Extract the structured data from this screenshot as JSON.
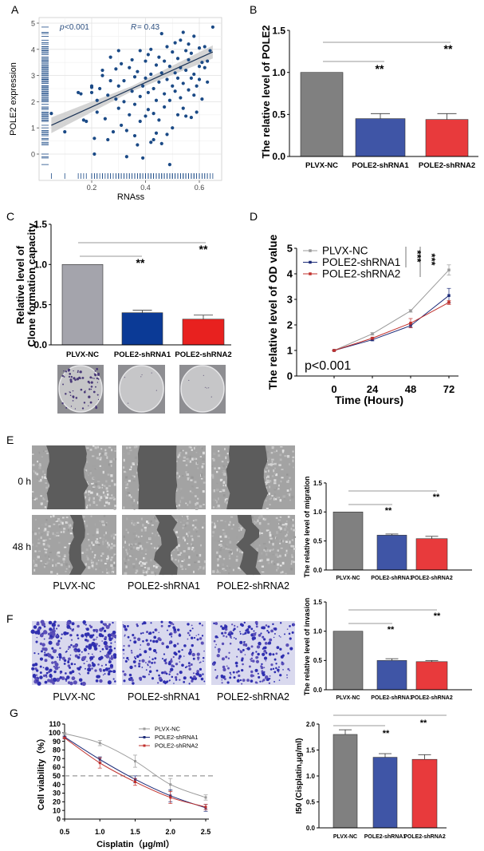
{
  "panel_labels": [
    "A",
    "B",
    "C",
    "D",
    "E",
    "F",
    "G"
  ],
  "groups": [
    "PLVX-NC",
    "POLE2-shRNA1",
    "POLE2-shRNA2"
  ],
  "colors": {
    "nc": "#808080",
    "sh1": "#3f55a6",
    "sh1_dark": "#0b3a96",
    "sh2": "#e83a3c",
    "scatter": "#1b4a86",
    "line_nc": "#9a9a9a",
    "line_sh1": "#1c2b78",
    "line_sh2": "#c0302c"
  },
  "wound_images": {
    "time_labels": [
      "0 h",
      "48 h"
    ],
    "captions": [
      "PLVX-NC",
      "POLE2-shRNA1",
      "POLE2-shRNA2"
    ]
  },
  "invasion_images": {
    "captions": [
      "PLVX-NC",
      "POLE2-shRNA1",
      "POLE2-shRNA2"
    ]
  },
  "chart_data": [
    {
      "panel": "A",
      "type": "scatter",
      "xlabel": "RNAss",
      "ylabel": "POLE2 expression",
      "xticks": [
        "0.2",
        "0.4",
        "0.6"
      ],
      "yticks": [
        "0",
        "1",
        "2",
        "3",
        "4",
        "5"
      ],
      "annotations": {
        "p_prefix": "p",
        "p_text": "<0.001",
        "r_prefix": "R",
        "r_text": "= 0.43"
      },
      "regression": {
        "x": [
          0.05,
          0.65
        ],
        "y": [
          1.1,
          3.9
        ]
      },
      "grid": true,
      "rug": true,
      "points": [
        [
          0.05,
          1.55
        ],
        [
          0.1,
          0.85
        ],
        [
          0.15,
          2.35
        ],
        [
          0.16,
          2.3
        ],
        [
          0.17,
          1.3
        ],
        [
          0.18,
          1.25
        ],
        [
          0.2,
          2.55
        ],
        [
          0.2,
          2.35
        ],
        [
          0.2,
          2.6
        ],
        [
          0.21,
          0.6
        ],
        [
          0.21,
          0.0
        ],
        [
          0.22,
          1.6
        ],
        [
          0.22,
          2.05
        ],
        [
          0.23,
          2.5
        ],
        [
          0.24,
          3.2
        ],
        [
          0.24,
          3.0
        ],
        [
          0.25,
          1.35
        ],
        [
          0.26,
          0.55
        ],
        [
          0.26,
          2.25
        ],
        [
          0.27,
          2.8
        ],
        [
          0.27,
          3.7
        ],
        [
          0.28,
          0.85
        ],
        [
          0.29,
          2.1
        ],
        [
          0.29,
          3.25
        ],
        [
          0.3,
          1.75
        ],
        [
          0.3,
          2.6
        ],
        [
          0.3,
          3.95
        ],
        [
          0.31,
          3.45
        ],
        [
          0.31,
          1.1
        ],
        [
          0.32,
          2.0
        ],
        [
          0.32,
          2.8
        ],
        [
          0.33,
          0.9
        ],
        [
          0.33,
          -0.1
        ],
        [
          0.34,
          3.3
        ],
        [
          0.34,
          1.5
        ],
        [
          0.35,
          2.4
        ],
        [
          0.35,
          3.6
        ],
        [
          0.36,
          0.7
        ],
        [
          0.36,
          2.95
        ],
        [
          0.36,
          1.9
        ],
        [
          0.37,
          3.15
        ],
        [
          0.37,
          0.35
        ],
        [
          0.38,
          2.2
        ],
        [
          0.38,
          3.95
        ],
        [
          0.38,
          1.25
        ],
        [
          0.39,
          2.6
        ],
        [
          0.39,
          -0.15
        ],
        [
          0.4,
          1.45
        ],
        [
          0.4,
          3.55
        ],
        [
          0.4,
          2.9
        ],
        [
          0.41,
          3.8
        ],
        [
          0.41,
          1.7
        ],
        [
          0.41,
          2.35
        ],
        [
          0.42,
          0.45
        ],
        [
          0.42,
          3.05
        ],
        [
          0.42,
          4.0
        ],
        [
          0.43,
          2.5
        ],
        [
          0.43,
          1.55
        ],
        [
          0.43,
          0.55
        ],
        [
          0.44,
          3.4
        ],
        [
          0.44,
          2.05
        ],
        [
          0.44,
          0.8
        ],
        [
          0.45,
          3.7
        ],
        [
          0.45,
          2.75
        ],
        [
          0.45,
          1.3
        ],
        [
          0.46,
          4.6
        ],
        [
          0.46,
          3.1
        ],
        [
          0.46,
          0.4
        ],
        [
          0.47,
          2.3
        ],
        [
          0.47,
          3.55
        ],
        [
          0.47,
          1.8
        ],
        [
          0.48,
          2.85
        ],
        [
          0.48,
          4.1
        ],
        [
          0.48,
          0.75
        ],
        [
          0.49,
          3.35
        ],
        [
          0.49,
          2.05
        ],
        [
          0.49,
          -0.4
        ],
        [
          0.5,
          3.9
        ],
        [
          0.5,
          2.6
        ],
        [
          0.5,
          1.0
        ],
        [
          0.51,
          4.25
        ],
        [
          0.51,
          3.1
        ],
        [
          0.51,
          2.4
        ],
        [
          0.52,
          1.5
        ],
        [
          0.52,
          3.65
        ],
        [
          0.52,
          2.9
        ],
        [
          0.53,
          4.35
        ],
        [
          0.53,
          2.15
        ],
        [
          0.53,
          3.3
        ],
        [
          0.54,
          1.75
        ],
        [
          0.54,
          4.65
        ],
        [
          0.54,
          2.7
        ],
        [
          0.55,
          3.95
        ],
        [
          0.55,
          3.2
        ],
        [
          0.55,
          1.45
        ],
        [
          0.56,
          2.45
        ],
        [
          0.56,
          4.2
        ],
        [
          0.56,
          3.6
        ],
        [
          0.57,
          1.4
        ],
        [
          0.57,
          2.9
        ],
        [
          0.57,
          3.85
        ],
        [
          0.58,
          3.05
        ],
        [
          0.58,
          4.5
        ],
        [
          0.58,
          2.25
        ],
        [
          0.59,
          2.6
        ],
        [
          0.59,
          1.6
        ],
        [
          0.6,
          3.35
        ],
        [
          0.6,
          4.05
        ],
        [
          0.6,
          2.85
        ],
        [
          0.61,
          2.1
        ],
        [
          0.61,
          3.5
        ],
        [
          0.62,
          4.1
        ],
        [
          0.62,
          3.3
        ],
        [
          0.63,
          2.75
        ],
        [
          0.63,
          3.55
        ],
        [
          0.65,
          4.85
        ],
        [
          0.64,
          3.95
        ]
      ]
    },
    {
      "panel": "B",
      "type": "bar",
      "ylabel": "The relative level of POLE2",
      "categories": [
        "PLVX-NC",
        "POLE2-shRNA1",
        "POLE2-shRNA2"
      ],
      "values": [
        1.0,
        0.45,
        0.44
      ],
      "errors": [
        0,
        0.06,
        0.07
      ],
      "ylim": [
        0,
        1.5
      ],
      "yticks": [
        "0.0",
        "0.5",
        "1.0",
        "1.5"
      ],
      "significance": [
        {
          "compare": [
            "PLVX-NC",
            "POLE2-shRNA2"
          ],
          "label": "**"
        },
        {
          "compare": [
            "PLVX-NC",
            "POLE2-shRNA1"
          ],
          "label": "**"
        }
      ]
    },
    {
      "panel": "C",
      "type": "bar",
      "ylabel_lines": [
        "Relative level of",
        "Clone formation capacity"
      ],
      "categories": [
        "PLVX-NC",
        "POLE2-shRNA1",
        "POLE2-shRNA2"
      ],
      "values": [
        1.0,
        0.4,
        0.32
      ],
      "errors": [
        0,
        0.03,
        0.05
      ],
      "ylim": [
        0,
        1.5
      ],
      "yticks": [
        "0.0",
        "0.5",
        "1.0",
        "1.5"
      ],
      "significance": [
        {
          "compare": [
            "PLVX-NC",
            "POLE2-shRNA2"
          ],
          "label": "**"
        },
        {
          "compare": [
            "PLVX-NC",
            "POLE2-shRNA1"
          ],
          "label": "**"
        }
      ]
    },
    {
      "panel": "D",
      "type": "line",
      "xlabel": "Time (Hours)",
      "ylabel": "The relative level of OD value",
      "x": [
        0,
        24,
        48,
        72
      ],
      "xticks": [
        "0",
        "24",
        "48",
        "72"
      ],
      "yticks": [
        "0",
        "1",
        "2",
        "3",
        "4",
        "5"
      ],
      "ylim": [
        0,
        5
      ],
      "legend": "top-left",
      "annotation": "p<0.001",
      "significance": [
        {
          "label": "***"
        },
        {
          "label": "***"
        }
      ],
      "series": [
        {
          "name": "PLVX-NC",
          "values": [
            1.0,
            1.65,
            2.55,
            4.15
          ],
          "errors": [
            0.02,
            0.05,
            0.05,
            0.2
          ]
        },
        {
          "name": "POLE2-shRNA1",
          "values": [
            1.0,
            1.42,
            1.97,
            3.15
          ],
          "errors": [
            0.02,
            0.04,
            0.08,
            0.28
          ]
        },
        {
          "name": "POLE2-shRNA2",
          "values": [
            1.0,
            1.48,
            2.07,
            2.88
          ],
          "errors": [
            0.02,
            0.04,
            0.18,
            0.08
          ]
        }
      ]
    },
    {
      "panel": "E",
      "type": "bar",
      "ylabel": "The relative level of migration",
      "categories": [
        "PLVX-NC",
        "POLE2-shRNA1",
        "POLE2-shRNA2"
      ],
      "values": [
        1.0,
        0.6,
        0.54
      ],
      "errors": [
        0,
        0.02,
        0.04
      ],
      "ylim": [
        0,
        1.5
      ],
      "yticks": [
        "0.0",
        "0.5",
        "1.0",
        "1.5"
      ],
      "significance": [
        {
          "compare": [
            "PLVX-NC",
            "POLE2-shRNA2"
          ],
          "label": "**"
        },
        {
          "compare": [
            "PLVX-NC",
            "POLE2-shRNA1"
          ],
          "label": "**"
        }
      ]
    },
    {
      "panel": "F",
      "type": "bar",
      "ylabel": "The relative level of invasion",
      "categories": [
        "PLVX-NC",
        "POLE2-shRNA1",
        "POLE2-shRNA2"
      ],
      "values": [
        1.0,
        0.5,
        0.48
      ],
      "errors": [
        0,
        0.03,
        0.02
      ],
      "ylim": [
        0,
        1.5
      ],
      "yticks": [
        "0.0",
        "0.5",
        "1.0",
        "1.5"
      ],
      "significance": [
        {
          "compare": [
            "PLVX-NC",
            "POLE2-shRNA2"
          ],
          "label": "**"
        },
        {
          "compare": [
            "PLVX-NC",
            "POLE2-shRNA1"
          ],
          "label": "**"
        }
      ]
    },
    {
      "panel": "G",
      "type": "line",
      "xlabel": "Cisplatin（μg/ml）",
      "ylabel": "Cell viability（%）",
      "x": [
        0.5,
        1.0,
        1.5,
        2.0,
        2.5
      ],
      "xticks": [
        "0.5",
        "1.0",
        "1.5",
        "2.0",
        "2.5"
      ],
      "yticks": [
        "0",
        "10",
        "20",
        "30",
        "40",
        "50",
        "60",
        "70",
        "80",
        "90",
        "100",
        "110"
      ],
      "ylim": [
        0,
        110
      ],
      "reference_line": 50,
      "legend": "top-right",
      "series": [
        {
          "name": "PLVX-NC",
          "values": [
            99,
            88,
            67,
            40,
            25
          ],
          "errors": [
            1,
            3,
            7,
            7,
            3
          ]
        },
        {
          "name": "POLE2-shRNA1",
          "values": [
            95,
            69,
            46,
            27,
            13
          ],
          "errors": [
            1,
            3,
            4,
            7,
            4
          ]
        },
        {
          "name": "POLE2-shRNA2",
          "values": [
            94,
            65,
            43,
            25,
            14
          ],
          "errors": [
            1,
            6,
            4,
            7,
            3
          ]
        }
      ]
    },
    {
      "panel": "G",
      "type": "bar",
      "ylabel": "I50 (Cisplatin,μg/ml)",
      "categories": [
        "PLVX-NC",
        "POLE2-shRNA1",
        "POLE2-shRNA2"
      ],
      "values": [
        1.8,
        1.36,
        1.32
      ],
      "errors": [
        0.09,
        0.07,
        0.09
      ],
      "ylim": [
        0,
        2.0
      ],
      "yticks": [
        "0.0",
        "0.5",
        "1.0",
        "1.5",
        "2.0"
      ],
      "significance": [
        {
          "compare": [
            "PLVX-NC",
            "POLE2-shRNA2"
          ],
          "label": "**"
        },
        {
          "compare": [
            "PLVX-NC",
            "POLE2-shRNA1"
          ],
          "label": "**"
        }
      ]
    }
  ]
}
